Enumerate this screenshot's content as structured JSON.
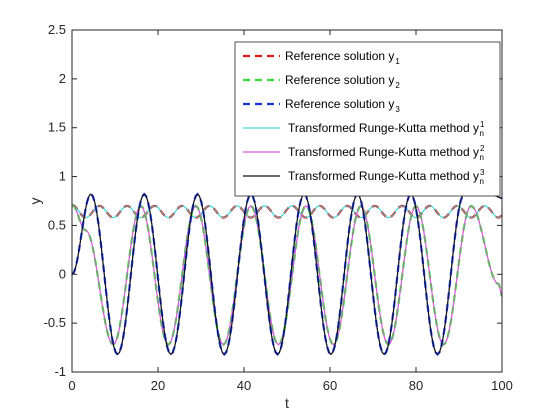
{
  "chart_data": {
    "type": "line",
    "title": "",
    "xlabel": "t",
    "ylabel": "y",
    "xlim": [
      0,
      100
    ],
    "ylim": [
      -1,
      2.5
    ],
    "xticks": [
      "0",
      "20",
      "40",
      "60",
      "80",
      "100"
    ],
    "yticks": [
      "-1",
      "-0.5",
      "0",
      "0.5",
      "1",
      "1.5",
      "2",
      "2.5"
    ],
    "grid": false,
    "legend_position": "top-right",
    "legend": [
      {
        "text": "Reference solution y",
        "sub": "1",
        "sup": "",
        "color": "#d81b1b",
        "style": "dashed"
      },
      {
        "text": "Reference solution y",
        "sub": "2",
        "sup": "",
        "color": "#33e033",
        "style": "dashed"
      },
      {
        "text": "Reference solution y",
        "sub": "3",
        "sup": "",
        "color": "#1a33d9",
        "style": "dashed"
      },
      {
        "text": "Transformed Runge-Kutta method y",
        "sub": "n",
        "sup": "1",
        "color": "#40d9d9",
        "style": "solid"
      },
      {
        "text": "Transformed Runge-Kutta method y",
        "sub": "n",
        "sup": "2",
        "color": "#d958d9",
        "style": "solid"
      },
      {
        "text": "Transformed Runge-Kutta method y",
        "sub": "n",
        "sup": "3",
        "color": "#111111",
        "style": "solid"
      }
    ],
    "series": [
      {
        "name": "y1 / y_n^1",
        "description": "small oscillation",
        "x": [
          0,
          3.2,
          6.4,
          9.6,
          12.8,
          16.0,
          19.2,
          22.4,
          25.6,
          28.8,
          32.0,
          35.2,
          38.4,
          41.6,
          44.8,
          48.0,
          51.2,
          54.4,
          57.6,
          60.8,
          64.0,
          67.2,
          70.4,
          73.6,
          76.8,
          80.0,
          83.2,
          86.4,
          89.6,
          92.8,
          96.0,
          99.2,
          100
        ],
        "y": [
          0.71,
          0.58,
          0.7,
          0.58,
          0.7,
          0.58,
          0.7,
          0.58,
          0.7,
          0.58,
          0.7,
          0.58,
          0.7,
          0.58,
          0.7,
          0.58,
          0.7,
          0.58,
          0.7,
          0.58,
          0.7,
          0.58,
          0.7,
          0.58,
          0.7,
          0.58,
          0.7,
          0.58,
          0.7,
          0.58,
          0.7,
          0.58,
          0.6
        ]
      },
      {
        "name": "y2 / y_n^2",
        "x": [
          0,
          3.2,
          9.6,
          16.0,
          22.4,
          28.8,
          35.2,
          41.6,
          48.0,
          54.4,
          60.8,
          67.2,
          73.6,
          80.0,
          86.4,
          92.8,
          99.2,
          100
        ],
        "y": [
          0.71,
          0.45,
          -0.72,
          0.7,
          -0.72,
          0.7,
          -0.72,
          0.7,
          -0.72,
          0.7,
          -0.72,
          0.7,
          -0.72,
          0.7,
          -0.72,
          0.7,
          -0.1,
          -0.22
        ]
      },
      {
        "name": "y3 / y_n^3",
        "x": [
          0,
          4.4,
          10.6,
          16.8,
          23.0,
          29.2,
          35.4,
          41.6,
          47.8,
          54.0,
          60.2,
          66.4,
          72.6,
          78.8,
          85.0,
          91.2,
          97.4,
          100
        ],
        "y": [
          0.0,
          0.82,
          -0.82,
          0.82,
          -0.82,
          0.82,
          -0.82,
          0.82,
          -0.82,
          0.82,
          -0.82,
          0.82,
          -0.82,
          0.82,
          -0.82,
          0.82,
          0.82,
          0.78
        ]
      }
    ]
  }
}
